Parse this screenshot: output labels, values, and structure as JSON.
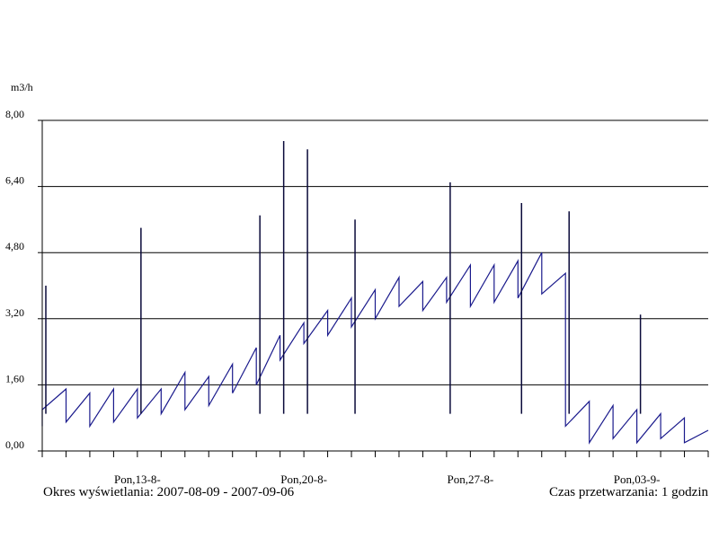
{
  "chart_data": {
    "type": "line",
    "ylabel": "m3/h",
    "ylim": [
      0,
      8
    ],
    "yticks": [
      {
        "value": 0,
        "label": "0,00"
      },
      {
        "value": 1.6,
        "label": "1,60"
      },
      {
        "value": 3.2,
        "label": "3,20"
      },
      {
        "value": 4.8,
        "label": "4,80"
      },
      {
        "value": 6.4,
        "label": "6,40"
      },
      {
        "value": 8.0,
        "label": "8,00"
      }
    ],
    "xlim": [
      "2007-08-09",
      "2007-09-06"
    ],
    "xticks": [
      {
        "date": "2007-08-13",
        "label": "Pon,13-8-"
      },
      {
        "date": "2007-08-20",
        "label": "Pon,20-8-"
      },
      {
        "date": "2007-08-27",
        "label": "Pon,27-8-"
      },
      {
        "date": "2007-09-03",
        "label": "Pon,03-9-"
      }
    ],
    "grid": "horizontal",
    "series": [
      {
        "color": "#1a1a8c",
        "points": [
          [
            "2007-08-09",
            0.6
          ],
          [
            "2007-08-09",
            1.0
          ],
          [
            "2007-08-10",
            1.5
          ],
          [
            "2007-08-10",
            0.7
          ],
          [
            "2007-08-11",
            1.4
          ],
          [
            "2007-08-11",
            0.6
          ],
          [
            "2007-08-12",
            1.5
          ],
          [
            "2007-08-12",
            0.7
          ],
          [
            "2007-08-13",
            1.5
          ],
          [
            "2007-08-13",
            0.8
          ],
          [
            "2007-08-14",
            1.5
          ],
          [
            "2007-08-14",
            0.9
          ],
          [
            "2007-08-15",
            1.9
          ],
          [
            "2007-08-15",
            1.0
          ],
          [
            "2007-08-16",
            1.8
          ],
          [
            "2007-08-16",
            1.1
          ],
          [
            "2007-08-17",
            2.1
          ],
          [
            "2007-08-17",
            1.4
          ],
          [
            "2007-08-18",
            2.5
          ],
          [
            "2007-08-18",
            1.6
          ],
          [
            "2007-08-19",
            2.8
          ],
          [
            "2007-08-19",
            2.2
          ],
          [
            "2007-08-20",
            3.1
          ],
          [
            "2007-08-20",
            2.6
          ],
          [
            "2007-08-21",
            3.4
          ],
          [
            "2007-08-21",
            2.8
          ],
          [
            "2007-08-22",
            3.7
          ],
          [
            "2007-08-22",
            3.0
          ],
          [
            "2007-08-23",
            3.9
          ],
          [
            "2007-08-23",
            3.2
          ],
          [
            "2007-08-24",
            4.2
          ],
          [
            "2007-08-24",
            3.5
          ],
          [
            "2007-08-25",
            4.1
          ],
          [
            "2007-08-25",
            3.4
          ],
          [
            "2007-08-26",
            4.2
          ],
          [
            "2007-08-26",
            3.6
          ],
          [
            "2007-08-27",
            4.5
          ],
          [
            "2007-08-27",
            3.5
          ],
          [
            "2007-08-28",
            4.5
          ],
          [
            "2007-08-28",
            3.6
          ],
          [
            "2007-08-29",
            4.6
          ],
          [
            "2007-08-29",
            3.7
          ],
          [
            "2007-08-30",
            4.8
          ],
          [
            "2007-08-30",
            3.8
          ],
          [
            "2007-08-31",
            4.3
          ],
          [
            "2007-08-31",
            0.6
          ],
          [
            "2007-09-01",
            1.2
          ],
          [
            "2007-09-01",
            0.2
          ],
          [
            "2007-09-02",
            1.1
          ],
          [
            "2007-09-02",
            0.3
          ],
          [
            "2007-09-03",
            1.0
          ],
          [
            "2007-09-03",
            0.2
          ],
          [
            "2007-09-04",
            0.9
          ],
          [
            "2007-09-04",
            0.3
          ],
          [
            "2007-09-05",
            0.8
          ],
          [
            "2007-09-05",
            0.2
          ],
          [
            "2007-09-06",
            0.5
          ]
        ]
      }
    ],
    "spikes": [
      [
        "2007-08-09",
        4.0
      ],
      [
        "2007-08-13",
        5.4
      ],
      [
        "2007-08-18",
        5.7
      ],
      [
        "2007-08-19",
        7.5
      ],
      [
        "2007-08-20",
        7.3
      ],
      [
        "2007-08-22",
        5.6
      ],
      [
        "2007-08-26",
        6.5
      ],
      [
        "2007-08-29",
        6.0
      ],
      [
        "2007-08-31",
        5.8
      ],
      [
        "2007-09-03",
        3.3
      ]
    ]
  },
  "footer": {
    "period_label": "Okres wyświetlania: 2007-08-09 - 2007-09-06",
    "processing_label": "Czas przetwarzania: 1 godzin"
  }
}
